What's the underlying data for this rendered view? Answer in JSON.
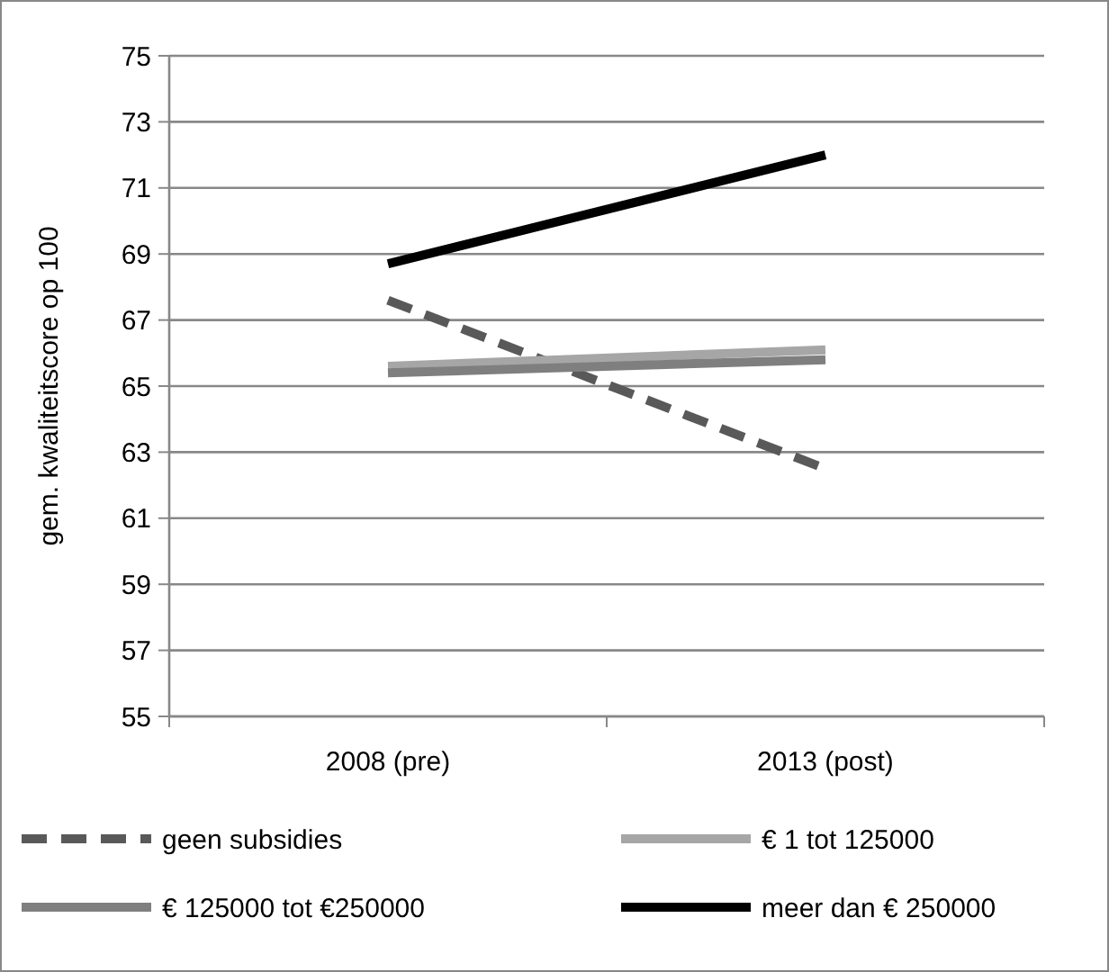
{
  "chart_data": {
    "type": "line",
    "ylabel": "gem. kwaliteitscore op 100",
    "categories": [
      "2008 (pre)",
      "2013 (post)"
    ],
    "ylim": [
      55,
      75
    ],
    "yticks": [
      55,
      57,
      59,
      61,
      63,
      65,
      67,
      69,
      71,
      73,
      75
    ],
    "grid": "y",
    "legend": "bottom",
    "series": [
      {
        "name": "geen subsidies",
        "color": "#595959",
        "values": [
          67.6,
          62.5
        ],
        "line_style": "dashed"
      },
      {
        "name": "€ 1 tot 125000",
        "color": "#a6a6a6",
        "values": [
          65.6,
          66.1
        ],
        "line_style": "solid"
      },
      {
        "name": "€ 125000 tot €250000",
        "color": "#7f7f7f",
        "values": [
          65.4,
          65.8
        ],
        "line_style": "solid"
      },
      {
        "name": "meer dan € 250000",
        "color": "#000000",
        "values": [
          68.7,
          72.0
        ],
        "line_style": "solid"
      }
    ]
  }
}
